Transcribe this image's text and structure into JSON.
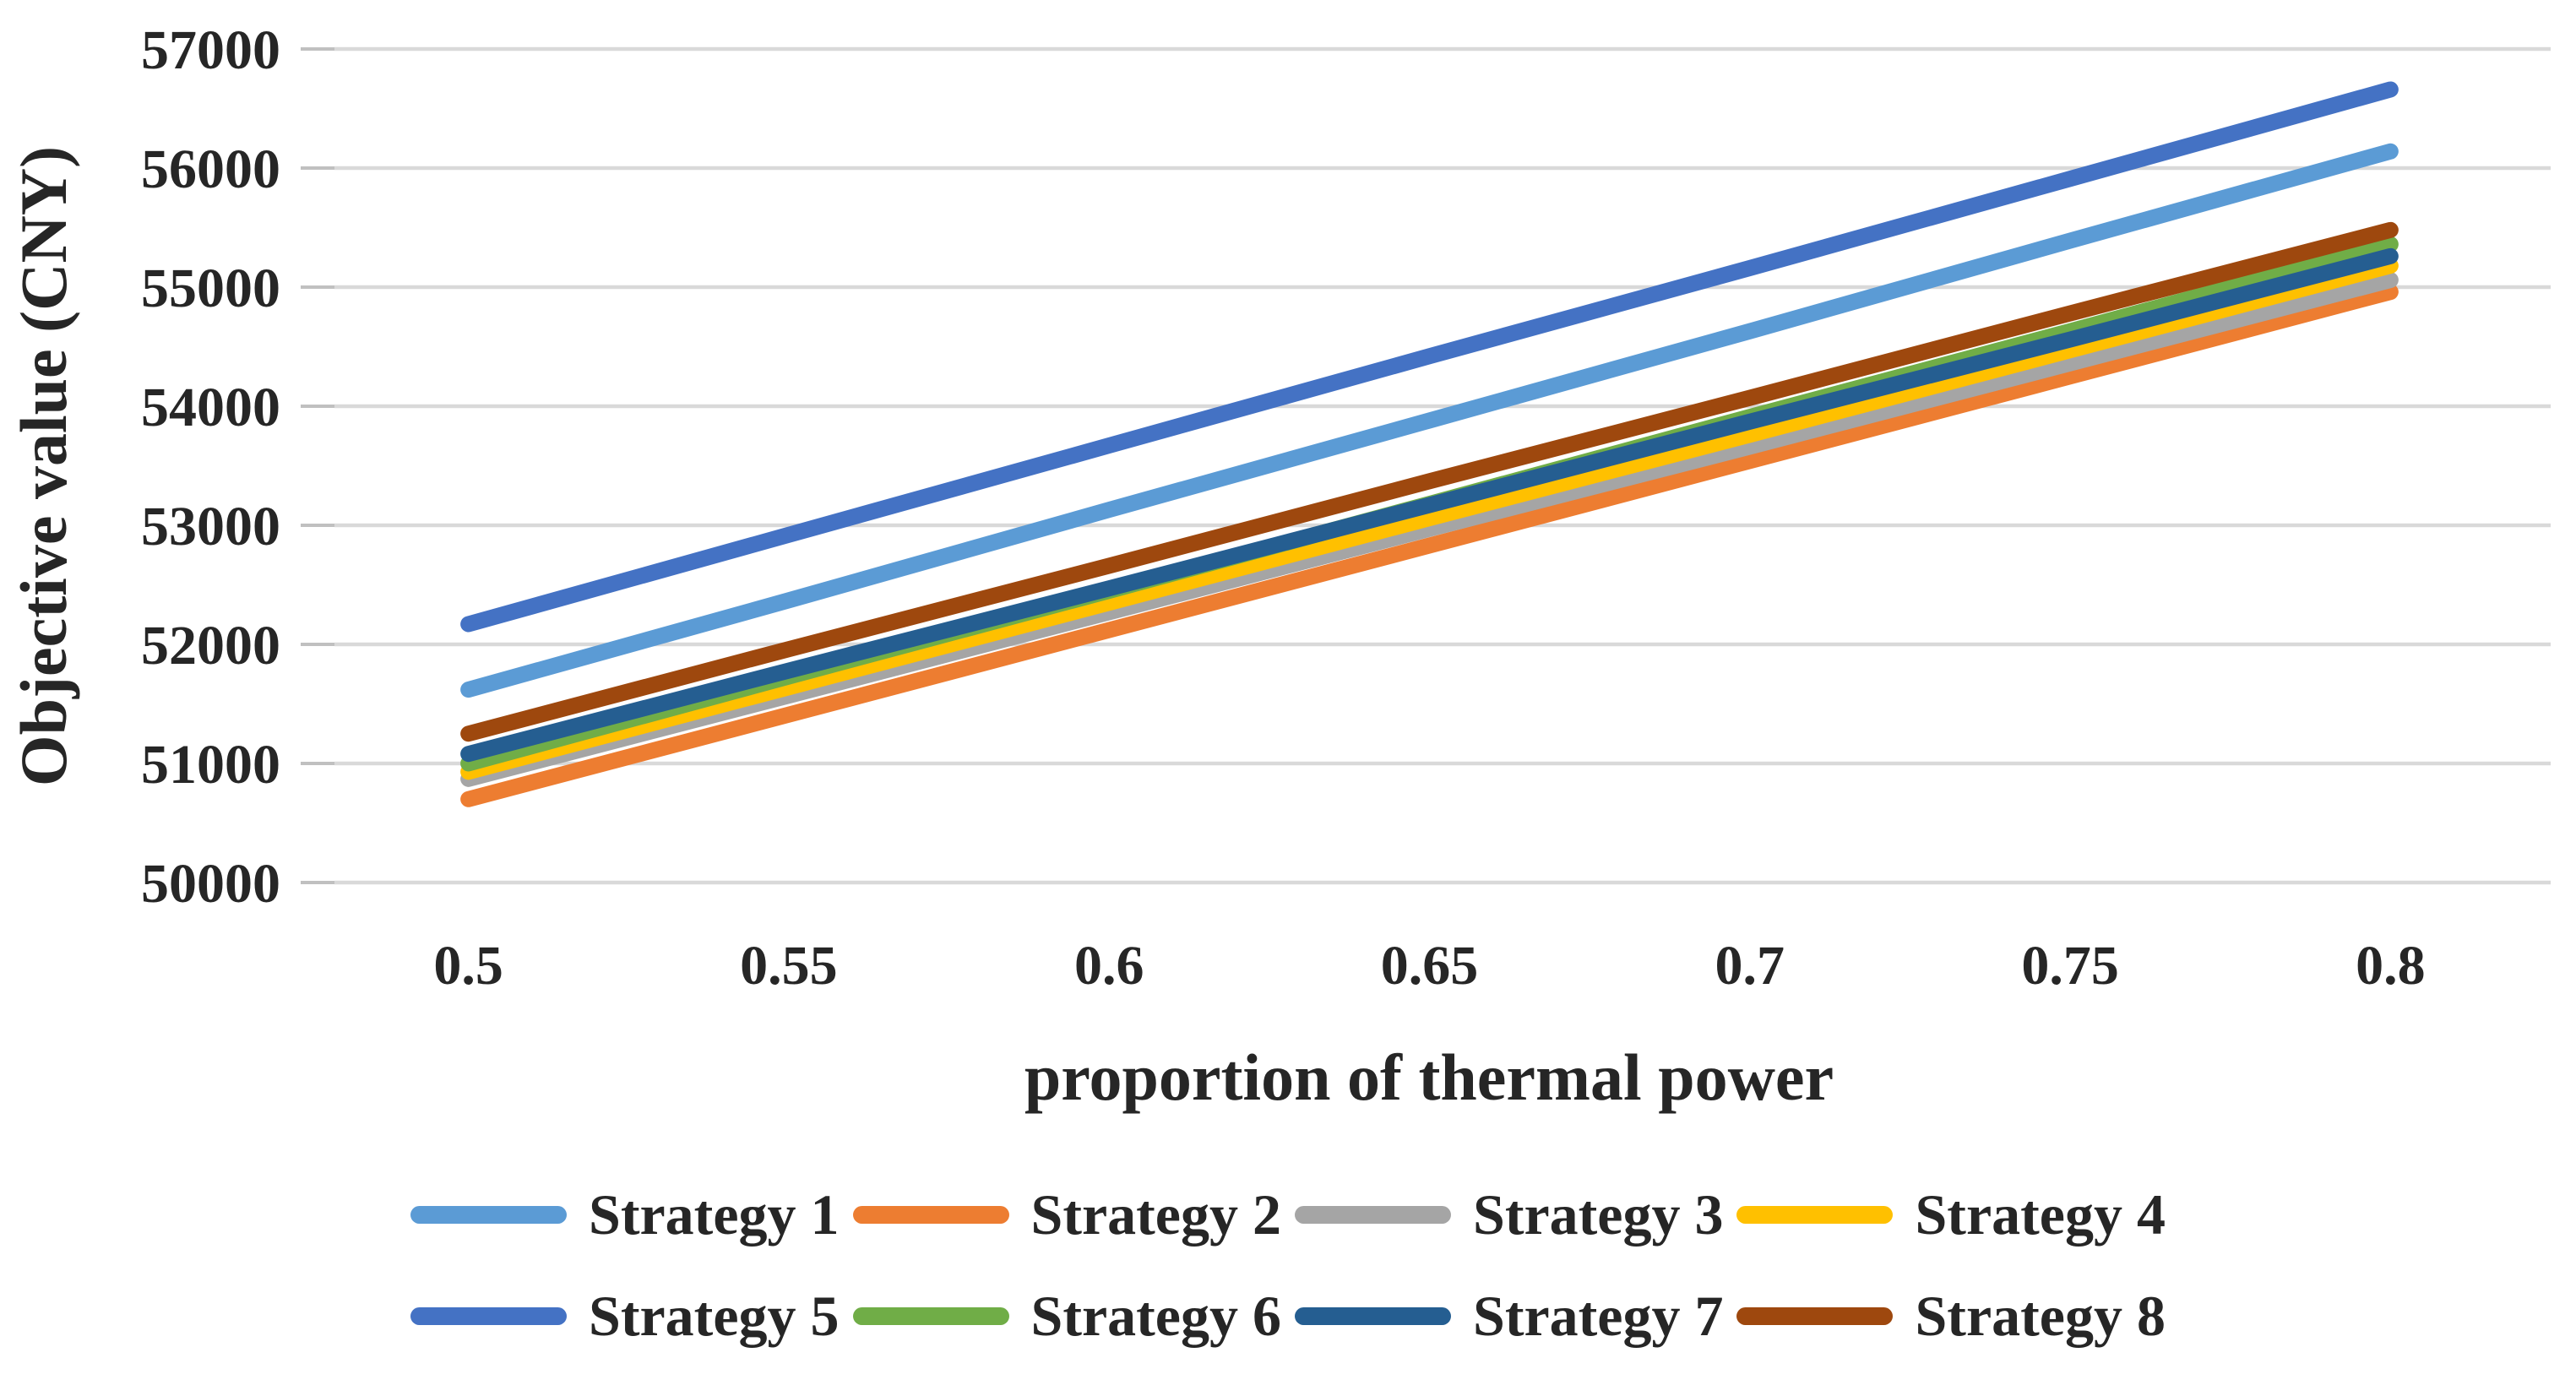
{
  "chart_data": {
    "type": "line",
    "xlabel": "proportion of thermal power",
    "ylabel": "Objective value (CNY)",
    "x": [
      0.5,
      0.55,
      0.6,
      0.65,
      0.7,
      0.75,
      0.8
    ],
    "x_tick_labels": [
      "0.5",
      "0.55",
      "0.6",
      "0.65",
      "0.7",
      "0.75",
      "0.8"
    ],
    "ylim": [
      50000,
      57000
    ],
    "ytick_step": 1000,
    "ytick_labels": [
      "50000",
      "51000",
      "52000",
      "53000",
      "54000",
      "55000",
      "56000",
      "57000"
    ],
    "grid": "horizontal-only",
    "legend_position": "bottom",
    "legend_rows": 2,
    "series": [
      {
        "name": "Strategy 1",
        "color": "#5B9BD5",
        "values": [
          51620,
          52370,
          53130,
          53880,
          54630,
          55390,
          56140
        ]
      },
      {
        "name": "Strategy 2",
        "color": "#ED7D31",
        "values": [
          50700,
          51410,
          52120,
          52830,
          53540,
          54250,
          54960
        ]
      },
      {
        "name": "Strategy 3",
        "color": "#A5A5A5",
        "values": [
          50870,
          51570,
          52270,
          52970,
          53660,
          54360,
          55060
        ]
      },
      {
        "name": "Strategy 4",
        "color": "#FFC000",
        "values": [
          50930,
          51640,
          52350,
          53060,
          53760,
          54470,
          55180
        ]
      },
      {
        "name": "Strategy 5",
        "color": "#4472C4",
        "values": [
          52170,
          52920,
          53670,
          54420,
          55160,
          55910,
          56660
        ]
      },
      {
        "name": "Strategy 6",
        "color": "#70AD47",
        "values": [
          51000,
          51730,
          52450,
          53180,
          53910,
          54630,
          55360
        ]
      },
      {
        "name": "Strategy 7",
        "color": "#255E91",
        "values": [
          51080,
          51780,
          52470,
          53170,
          53870,
          54560,
          55260
        ]
      },
      {
        "name": "Strategy 8",
        "color": "#9E480E",
        "values": [
          51250,
          51960,
          52660,
          53370,
          54070,
          54780,
          55480
        ]
      }
    ],
    "style": {
      "grid_color": "#D9D9D9",
      "tick_color": "#C0C0C0",
      "text_color": "#262626",
      "background": "#FFFFFF"
    }
  }
}
